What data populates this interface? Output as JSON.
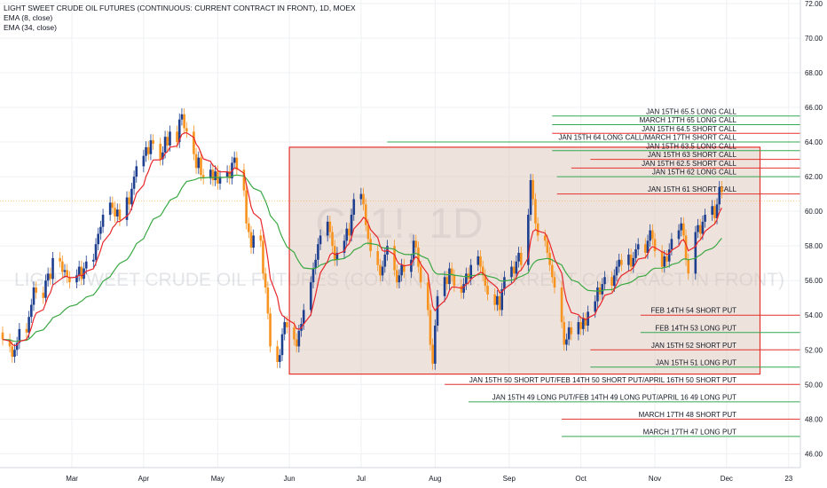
{
  "legend": {
    "title": "LIGHT SWEET CRUDE OIL FUTURES (CONTINUOUS: CURRENT CONTRACT IN FRONT), 1D, MOEX",
    "ema_fast": "EMA (8, close)",
    "ema_slow": "EMA (34, close)"
  },
  "watermark": {
    "symbol": "CL1!, 1D",
    "name": "LIGHT SWEET CRUDE OIL FUTURES (CONTINUOUS: CURRENT CONTRACT IN FRONT)"
  },
  "colors": {
    "up": "#1e3f8f",
    "down": "#f7931e",
    "ema_fast": "#e8262a",
    "ema_slow": "#3aa843",
    "level_red": "#e5322d",
    "level_green": "#34a853",
    "range_box_fill": "#d9c1b2",
    "range_box_border": "#e5322d",
    "current_price": "#ff9800"
  },
  "chart_data": {
    "type": "candlestick",
    "interval": "1D",
    "ylim": [
      45.2,
      72.2
    ],
    "y_ticks": [
      46,
      48,
      50,
      52,
      54,
      56,
      58,
      60,
      62,
      64,
      66,
      68,
      70,
      72
    ],
    "x_tick_labels": [
      "Mar",
      "Apr",
      "May",
      "Jun",
      "Jul",
      "Aug",
      "Sep",
      "Oct",
      "Nov",
      "Dec",
      "23"
    ],
    "x_tick_days": [
      45,
      75,
      106,
      136,
      166,
      197,
      228,
      258,
      289,
      319,
      345
    ],
    "day_range": [
      16,
      349
    ],
    "current_price": 60.59,
    "range_box": {
      "x_days": [
        136,
        333
      ],
      "y": [
        50.6,
        63.7
      ]
    },
    "levels": [
      {
        "price": 65.5,
        "label": "JAN 15TH 65.5 LONG CALL",
        "side": "long",
        "start_day": 246
      },
      {
        "price": 65.0,
        "label": "MARCH 17TH 65 LONG CALL",
        "side": "long",
        "start_day": 246
      },
      {
        "price": 64.5,
        "label": "JAN 15TH 64.5 SHORT CALL",
        "side": "short",
        "start_day": 246
      },
      {
        "price": 64.0,
        "label": "JAN 15TH 64 LONG CALL/MARCH 17TH SHORT CALL",
        "side": "long",
        "start_day": 177
      },
      {
        "price": 63.5,
        "label": "JAN 15TH 63.5 LONG CALL",
        "side": "long",
        "start_day": 246
      },
      {
        "price": 63.0,
        "label": "JAN 15TH 63 SHORT CALL",
        "side": "short",
        "start_day": 262
      },
      {
        "price": 62.5,
        "label": "JAN 15TH 62.5 SHORT CALL",
        "side": "short",
        "start_day": 254
      },
      {
        "price": 62.0,
        "label": "JAN 15TH 62 LONG CALL",
        "side": "long",
        "start_day": 248
      },
      {
        "price": 61.0,
        "label": "JAN 15TH 61 SHORT CALL",
        "side": "short",
        "start_day": 248
      },
      {
        "price": 54.0,
        "label": "FEB 14TH 54 SHORT PUT",
        "side": "short",
        "start_day": 283
      },
      {
        "price": 53.0,
        "label": "FEB 14TH 53 LONG PUT",
        "side": "long",
        "start_day": 283
      },
      {
        "price": 52.0,
        "label": "JAN 15TH 52 SHORT PUT",
        "side": "short",
        "start_day": 262
      },
      {
        "price": 51.0,
        "label": "JAN 15TH 51 LONG PUT",
        "side": "long",
        "start_day": 262
      },
      {
        "price": 50.0,
        "label": "JAN 15TH 50 SHORT PUT/FEB 14TH 50 SHORT PUT/APRIL 16TH 50 SHORT PUT",
        "side": "short",
        "start_day": 201
      },
      {
        "price": 49.0,
        "label": "JAN 15TH 49 LONG PUT/FEB 14TH 49 LONG PUT/APRIL 16 49 LONG PUT",
        "side": "long",
        "start_day": 211
      },
      {
        "price": 48.0,
        "label": "MARCH 17TH 48 SHORT PUT",
        "side": "short",
        "start_day": 250
      },
      {
        "price": 47.0,
        "label": "MARCH 17TH 47 LONG PUT",
        "side": "long",
        "start_day": 250
      }
    ],
    "closes": [
      [
        16,
        52.6
      ],
      [
        19,
        52.2
      ],
      [
        20,
        51.6
      ],
      [
        21,
        52.0
      ],
      [
        22,
        52.4
      ],
      [
        23,
        53.2
      ],
      [
        26,
        53.0
      ],
      [
        27,
        53.9
      ],
      [
        28,
        54.6
      ],
      [
        29,
        55.6
      ],
      [
        30,
        55.3
      ],
      [
        33,
        55.0
      ],
      [
        34,
        56.0
      ],
      [
        35,
        56.4
      ],
      [
        36,
        56.1
      ],
      [
        37,
        57.3
      ],
      [
        40,
        57.1
      ],
      [
        41,
        56.5
      ],
      [
        42,
        56.6
      ],
      [
        43,
        56.2
      ],
      [
        44,
        55.9
      ],
      [
        47,
        56.3
      ],
      [
        48,
        56.8
      ],
      [
        49,
        56.1
      ],
      [
        50,
        56.7
      ],
      [
        51,
        57.1
      ],
      [
        54,
        57.2
      ],
      [
        55,
        58.1
      ],
      [
        56,
        58.7
      ],
      [
        57,
        59.1
      ],
      [
        58,
        59.8
      ],
      [
        61,
        60.5
      ],
      [
        62,
        60.2
      ],
      [
        63,
        59.7
      ],
      [
        64,
        60.1
      ],
      [
        65,
        59.5
      ],
      [
        68,
        60.8
      ],
      [
        69,
        60.4
      ],
      [
        70,
        61.3
      ],
      [
        71,
        62.0
      ],
      [
        72,
        62.6
      ],
      [
        75,
        63.2
      ],
      [
        76,
        63.7
      ],
      [
        77,
        63.3
      ],
      [
        78,
        64.1
      ],
      [
        79,
        63.9
      ],
      [
        82,
        63.0
      ],
      [
        83,
        63.4
      ],
      [
        84,
        64.3
      ],
      [
        85,
        63.8
      ],
      [
        86,
        64.6
      ],
      [
        89,
        64.0
      ],
      [
        90,
        65.3
      ],
      [
        91,
        65.6
      ],
      [
        92,
        64.8
      ],
      [
        93,
        64.6
      ],
      [
        96,
        63.3
      ],
      [
        97,
        62.5
      ],
      [
        98,
        63.1
      ],
      [
        99,
        62.1
      ],
      [
        100,
        61.9
      ],
      [
        103,
        62.4
      ],
      [
        104,
        61.8
      ],
      [
        105,
        62.3
      ],
      [
        106,
        61.6
      ],
      [
        107,
        62.0
      ],
      [
        110,
        62.3
      ],
      [
        111,
        61.9
      ],
      [
        112,
        62.8
      ],
      [
        113,
        63.1
      ],
      [
        114,
        62.4
      ],
      [
        117,
        61.2
      ],
      [
        118,
        59.3
      ],
      [
        119,
        58.8
      ],
      [
        120,
        57.9
      ],
      [
        121,
        58.6
      ],
      [
        124,
        58.3
      ],
      [
        125,
        56.4
      ],
      [
        126,
        55.6
      ],
      [
        127,
        54.1
      ],
      [
        128,
        52.2
      ],
      [
        131,
        51.3
      ],
      [
        132,
        51.7
      ],
      [
        133,
        52.9
      ],
      [
        134,
        53.6
      ],
      [
        135,
        53.3
      ],
      [
        138,
        52.6
      ],
      [
        139,
        52.2
      ],
      [
        140,
        53.1
      ],
      [
        141,
        53.5
      ],
      [
        142,
        54.3
      ],
      [
        145,
        55.9
      ],
      [
        146,
        56.7
      ],
      [
        147,
        57.2
      ],
      [
        148,
        58.1
      ],
      [
        149,
        58.6
      ],
      [
        152,
        59.4
      ],
      [
        153,
        58.8
      ],
      [
        154,
        58.0
      ],
      [
        155,
        57.2
      ],
      [
        156,
        57.6
      ],
      [
        159,
        58.3
      ],
      [
        160,
        59.0
      ],
      [
        161,
        58.6
      ],
      [
        162,
        59.8
      ],
      [
        163,
        60.7
      ],
      [
        166,
        61.0
      ],
      [
        167,
        60.4
      ],
      [
        168,
        59.2
      ],
      [
        169,
        58.4
      ],
      [
        170,
        57.7
      ],
      [
        173,
        56.9
      ],
      [
        174,
        56.3
      ],
      [
        175,
        56.8
      ],
      [
        176,
        57.5
      ],
      [
        177,
        58.0
      ],
      [
        180,
        56.6
      ],
      [
        181,
        55.9
      ],
      [
        182,
        56.3
      ],
      [
        183,
        56.9
      ],
      [
        184,
        56.5
      ],
      [
        187,
        57.2
      ],
      [
        188,
        58.3
      ],
      [
        189,
        57.9
      ],
      [
        190,
        56.8
      ],
      [
        191,
        55.9
      ],
      [
        194,
        54.3
      ],
      [
        195,
        52.3
      ],
      [
        196,
        51.2
      ],
      [
        197,
        53.4
      ],
      [
        198,
        55.1
      ],
      [
        201,
        56.2
      ],
      [
        202,
        55.8
      ],
      [
        203,
        56.7
      ],
      [
        204,
        56.3
      ],
      [
        205,
        55.7
      ],
      [
        208,
        55.3
      ],
      [
        209,
        55.8
      ],
      [
        210,
        56.4
      ],
      [
        211,
        56.1
      ],
      [
        212,
        56.9
      ],
      [
        215,
        57.4
      ],
      [
        216,
        56.8
      ],
      [
        217,
        56.3
      ],
      [
        218,
        55.7
      ],
      [
        219,
        55.2
      ],
      [
        222,
        54.6
      ],
      [
        223,
        55.1
      ],
      [
        224,
        54.3
      ],
      [
        225,
        55.5
      ],
      [
        226,
        56.2
      ],
      [
        229,
        56.8
      ],
      [
        230,
        56.4
      ],
      [
        231,
        57.1
      ],
      [
        232,
        57.6
      ],
      [
        233,
        56.9
      ],
      [
        236,
        59.8
      ],
      [
        237,
        61.8
      ],
      [
        238,
        60.7
      ],
      [
        239,
        59.3
      ],
      [
        240,
        58.6
      ],
      [
        243,
        58.3
      ],
      [
        244,
        57.6
      ],
      [
        245,
        56.9
      ],
      [
        246,
        56.2
      ],
      [
        247,
        55.6
      ],
      [
        250,
        53.6
      ],
      [
        251,
        52.3
      ],
      [
        252,
        52.6
      ],
      [
        253,
        53.3
      ],
      [
        254,
        52.9
      ],
      [
        257,
        53.6
      ],
      [
        258,
        53.2
      ],
      [
        259,
        53.8
      ],
      [
        260,
        53.4
      ],
      [
        261,
        54.2
      ],
      [
        264,
        54.8
      ],
      [
        265,
        55.6
      ],
      [
        266,
        55.2
      ],
      [
        267,
        55.8
      ],
      [
        268,
        56.2
      ],
      [
        271,
        55.7
      ],
      [
        272,
        56.3
      ],
      [
        273,
        56.8
      ],
      [
        274,
        57.2
      ],
      [
        275,
        56.9
      ],
      [
        278,
        57.5
      ],
      [
        279,
        56.8
      ],
      [
        280,
        57.3
      ],
      [
        281,
        57.8
      ],
      [
        282,
        58.1
      ],
      [
        285,
        57.6
      ],
      [
        286,
        58.3
      ],
      [
        287,
        58.9
      ],
      [
        288,
        58.4
      ],
      [
        289,
        57.7
      ],
      [
        292,
        56.8
      ],
      [
        293,
        57.4
      ],
      [
        294,
        57.1
      ],
      [
        295,
        57.8
      ],
      [
        296,
        58.4
      ],
      [
        299,
        58.9
      ],
      [
        300,
        59.3
      ],
      [
        301,
        58.6
      ],
      [
        302,
        57.2
      ],
      [
        303,
        56.4
      ],
      [
        306,
        58.8
      ],
      [
        307,
        59.2
      ],
      [
        308,
        58.7
      ],
      [
        309,
        59.4
      ],
      [
        310,
        59.8
      ],
      [
        313,
        60.3
      ],
      [
        314,
        59.6
      ],
      [
        315,
        60.4
      ],
      [
        316,
        61.4
      ],
      [
        317,
        61.1
      ]
    ]
  }
}
